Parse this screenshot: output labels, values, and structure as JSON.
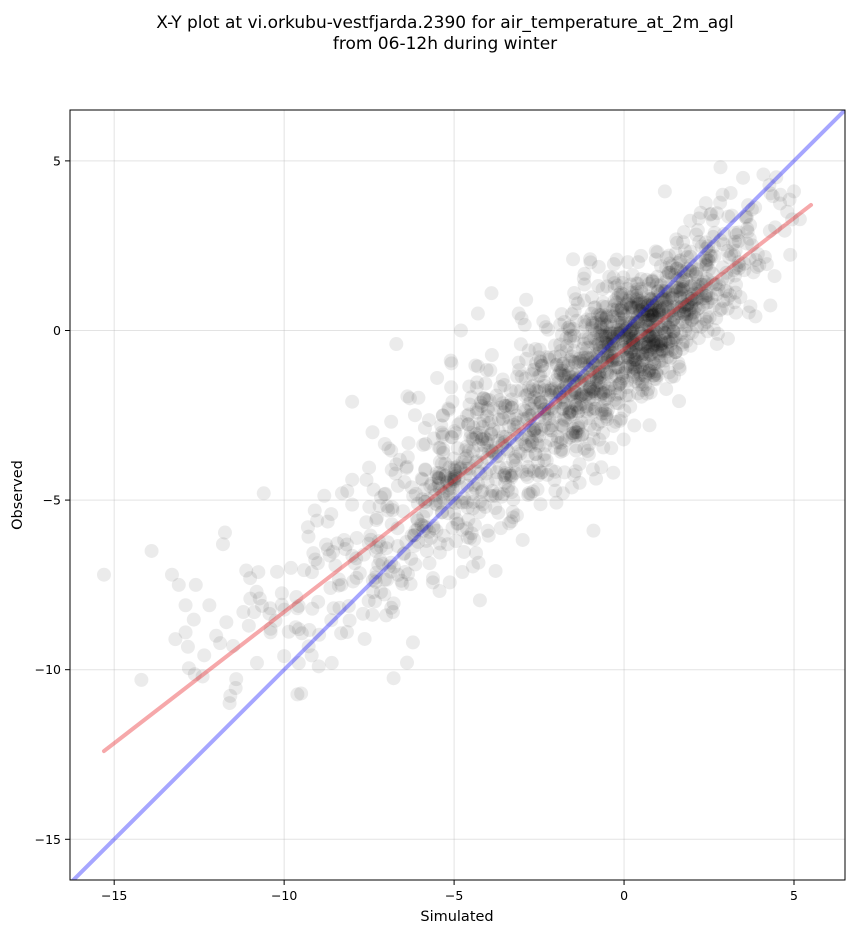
{
  "chart_data": {
    "type": "scatter",
    "title": "X-Y plot at vi.orkubu-vestfjarda.2390 for air_temperature_at_2m_agl",
    "subtitle": "from 06-12h during winter",
    "xlabel": "Simulated",
    "ylabel": "Observed",
    "xlim": [
      -16.3,
      6.5
    ],
    "ylim": [
      -16.2,
      6.5
    ],
    "xticks": [
      -15,
      -10,
      -5,
      0,
      5
    ],
    "yticks": [
      -15,
      -10,
      -5,
      0,
      5
    ],
    "xtick_labels": [
      "−15",
      "−10",
      "−5",
      "0",
      "5"
    ],
    "ytick_labels": [
      "−15",
      "−10",
      "−5",
      "0",
      "5"
    ],
    "grid": true,
    "marker_color": "#000000",
    "marker_alpha": 0.08,
    "reference_line": {
      "color": "#0000ff",
      "alpha": 0.35,
      "slope": 1,
      "intercept": 0
    },
    "regression_line": {
      "color": "#e8262a",
      "alpha": 0.4,
      "x": [
        -15.3,
        5.5
      ],
      "y": [
        -12.4,
        3.7
      ]
    },
    "scatter_cloud": {
      "count": 1700,
      "x_range": [
        -15.3,
        5.2
      ],
      "x_center": -1.0,
      "relation_slope": 0.78,
      "relation_intercept": -0.5,
      "spread": 1.25
    },
    "points": [
      [
        -15.3,
        -7.2
      ],
      [
        -14.2,
        -10.3
      ],
      [
        -13.9,
        -6.5
      ],
      [
        -13.3,
        -7.2
      ],
      [
        -13.1,
        -7.5
      ],
      [
        -12.9,
        -8.1
      ],
      [
        -12.9,
        -8.9
      ],
      [
        -13.2,
        -9.1
      ],
      [
        -12.6,
        -7.5
      ],
      [
        -12.4,
        -10.2
      ],
      [
        -12.2,
        -8.1
      ],
      [
        -12.0,
        -9.0
      ],
      [
        -11.8,
        -6.3
      ],
      [
        -11.7,
        -8.6
      ],
      [
        -11.5,
        -9.3
      ],
      [
        -11.2,
        -8.3
      ],
      [
        -11.0,
        -7.3
      ],
      [
        -10.8,
        -9.8
      ],
      [
        -10.6,
        -4.8
      ],
      [
        -10.4,
        -8.9
      ],
      [
        -10.0,
        -9.6
      ],
      [
        -9.8,
        -7.0
      ],
      [
        -9.5,
        -10.7
      ],
      [
        -9.3,
        -5.8
      ],
      [
        -9.0,
        -8.0
      ],
      [
        -8.6,
        -9.8
      ],
      [
        -8.3,
        -4.8
      ],
      [
        -8.0,
        -2.1
      ],
      [
        -7.4,
        -3.0
      ],
      [
        -6.8,
        -8.3
      ],
      [
        -6.7,
        -0.4
      ],
      [
        -6.3,
        -2.0
      ],
      [
        -5.5,
        -1.4
      ],
      [
        -4.8,
        0.0
      ],
      [
        -4.3,
        0.5
      ],
      [
        -3.9,
        1.1
      ],
      [
        -3.1,
        0.5
      ],
      [
        -2.3,
        0.1
      ],
      [
        -1.8,
        -4.8
      ],
      [
        -1.5,
        2.1
      ],
      [
        -1.0,
        2.1
      ],
      [
        -0.9,
        -5.9
      ],
      [
        -0.5,
        1.3
      ],
      [
        0.3,
        -2.8
      ],
      [
        0.5,
        2.2
      ],
      [
        1.2,
        4.1
      ],
      [
        1.8,
        0.0
      ],
      [
        2.5,
        1.8
      ],
      [
        2.9,
        4.0
      ],
      [
        3.5,
        4.5
      ],
      [
        4.1,
        4.6
      ],
      [
        4.6,
        4.0
      ],
      [
        5.0,
        4.1
      ],
      [
        4.8,
        3.5
      ],
      [
        2.2,
        3.3
      ],
      [
        0.8,
        -0.2
      ],
      [
        0.9,
        -0.6
      ],
      [
        0.7,
        0.3
      ],
      [
        1.0,
        0.1
      ],
      [
        0.5,
        -0.4
      ],
      [
        -3.4,
        -4.6
      ],
      [
        -3.2,
        -4.2
      ],
      [
        -3.6,
        -4.9
      ],
      [
        -2.7,
        -3.3
      ],
      [
        -2.2,
        -2.6
      ],
      [
        -7.0,
        -8.4
      ],
      [
        -4.6,
        -6.1
      ],
      [
        -5.8,
        -6.5
      ],
      [
        -2.0,
        -1.8
      ],
      [
        -1.2,
        -0.8
      ]
    ]
  }
}
